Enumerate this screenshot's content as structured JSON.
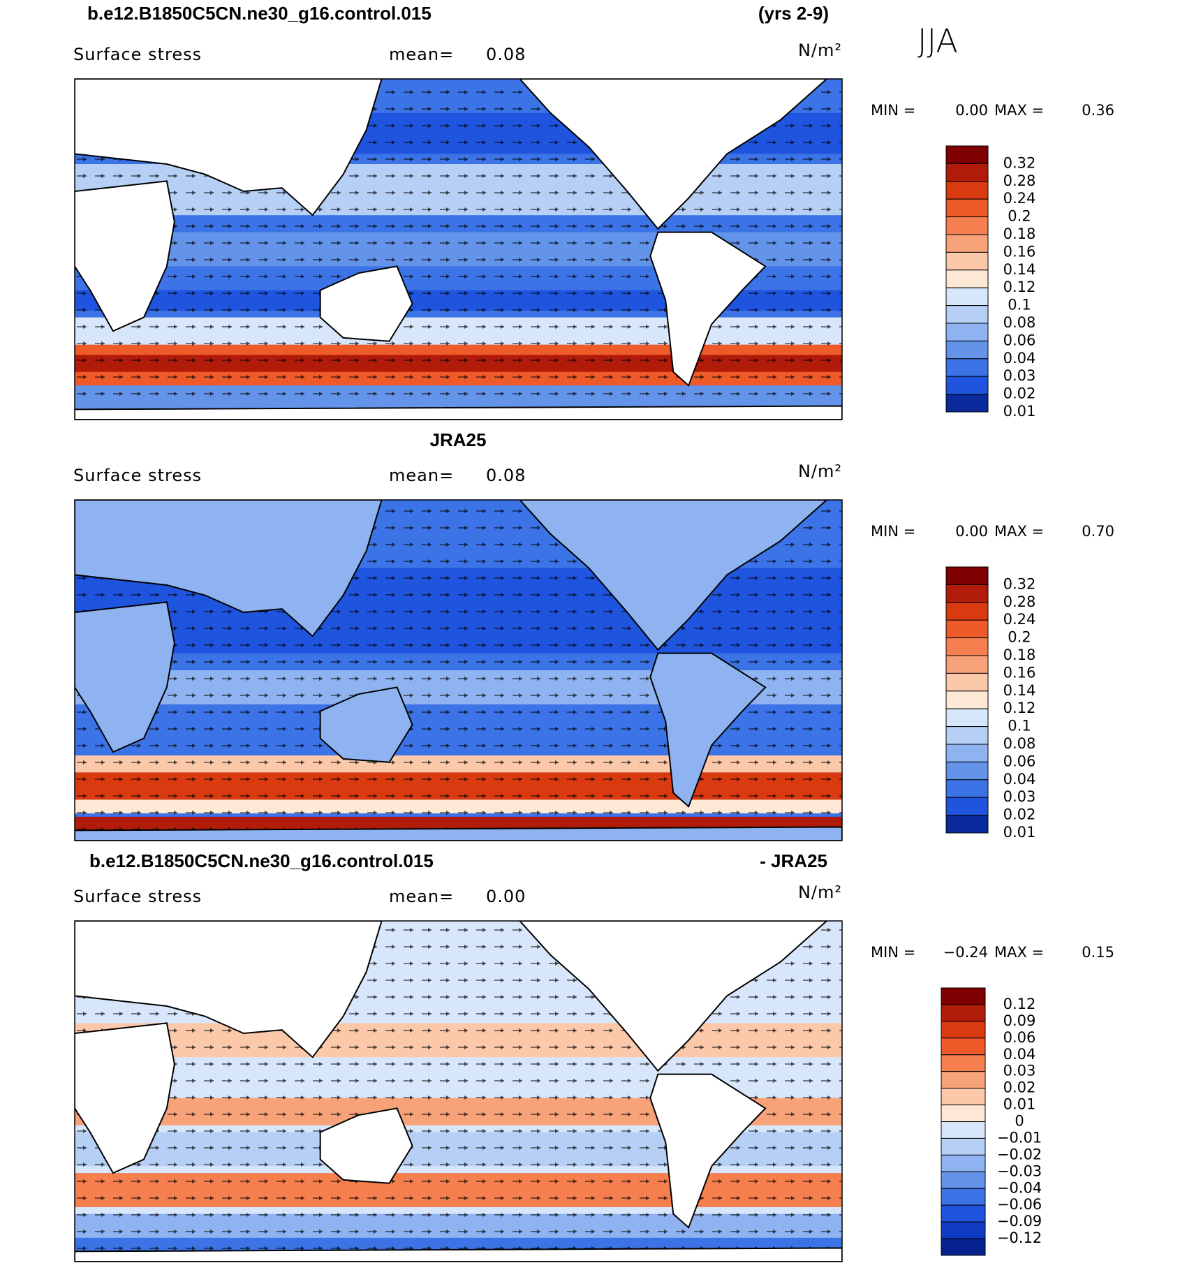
{
  "header": {
    "title_left": "b.e12.B1850C5CN.ne30_g16.control.015",
    "title_right": "(yrs 2-9)",
    "season": "JJA"
  },
  "panels": [
    {
      "variable": "Surface stress",
      "mean_label": "mean=",
      "mean": "0.08",
      "units": "N/m²",
      "min_label": "MIN =",
      "min": "0.00",
      "max_label": "MAX =",
      "max": "0.36",
      "colorbar": {
        "labels": [
          "0.32",
          "0.28",
          "0.24",
          "0.2",
          "0.18",
          "0.16",
          "0.14",
          "0.12",
          "0.1",
          "0.08",
          "0.06",
          "0.04",
          "0.03",
          "0.02",
          "0.01"
        ],
        "colors": [
          "#7f0000",
          "#b01b0a",
          "#d93a10",
          "#ef5a2b",
          "#f57f4e",
          "#f8a27a",
          "#fbc8aa",
          "#fde8d6",
          "#d7e6fa",
          "#b5cff5",
          "#8eb3f0",
          "#6493ea",
          "#3c73e6",
          "#1f55de",
          "#0a2a9c"
        ]
      }
    },
    {
      "heading": "JRA25",
      "variable": "Surface stress",
      "mean_label": "mean=",
      "mean": "0.08",
      "units": "N/m²",
      "min_label": "MIN =",
      "min": "0.00",
      "max_label": "MAX =",
      "max": "0.70",
      "colorbar": {
        "labels": [
          "0.32",
          "0.28",
          "0.24",
          "0.2",
          "0.18",
          "0.16",
          "0.14",
          "0.12",
          "0.1",
          "0.08",
          "0.06",
          "0.04",
          "0.03",
          "0.02",
          "0.01"
        ],
        "colors": [
          "#7f0000",
          "#b01b0a",
          "#d93a10",
          "#ef5a2b",
          "#f57f4e",
          "#f8a27a",
          "#fbc8aa",
          "#fde8d6",
          "#d7e6fa",
          "#b5cff5",
          "#8eb3f0",
          "#6493ea",
          "#3c73e6",
          "#1f55de",
          "#0a2a9c"
        ]
      }
    },
    {
      "heading_left": "b.e12.B1850C5CN.ne30_g16.control.015",
      "heading_right": "- JRA25",
      "variable": "Surface stress",
      "mean_label": "mean=",
      "mean": "0.00",
      "units": "N/m²",
      "min_label": "MIN =",
      "min": "−0.24",
      "max_label": "MAX =",
      "max": "0.15",
      "colorbar": {
        "labels": [
          "0.12",
          "0.09",
          "0.06",
          "0.04",
          "0.03",
          "0.02",
          "0.01",
          "0",
          "−0.01",
          "−0.02",
          "−0.03",
          "−0.04",
          "−0.06",
          "−0.09",
          "−0.12"
        ],
        "colors": [
          "#7f0000",
          "#b01b0a",
          "#d93a10",
          "#ef5a2b",
          "#f57f4e",
          "#f8a27a",
          "#fbc8aa",
          "#fde8d6",
          "#d7e6fa",
          "#b5cff5",
          "#8eb3f0",
          "#6493ea",
          "#3c73e6",
          "#1f55de",
          "#0f3bc4",
          "#05228f"
        ]
      }
    }
  ]
}
